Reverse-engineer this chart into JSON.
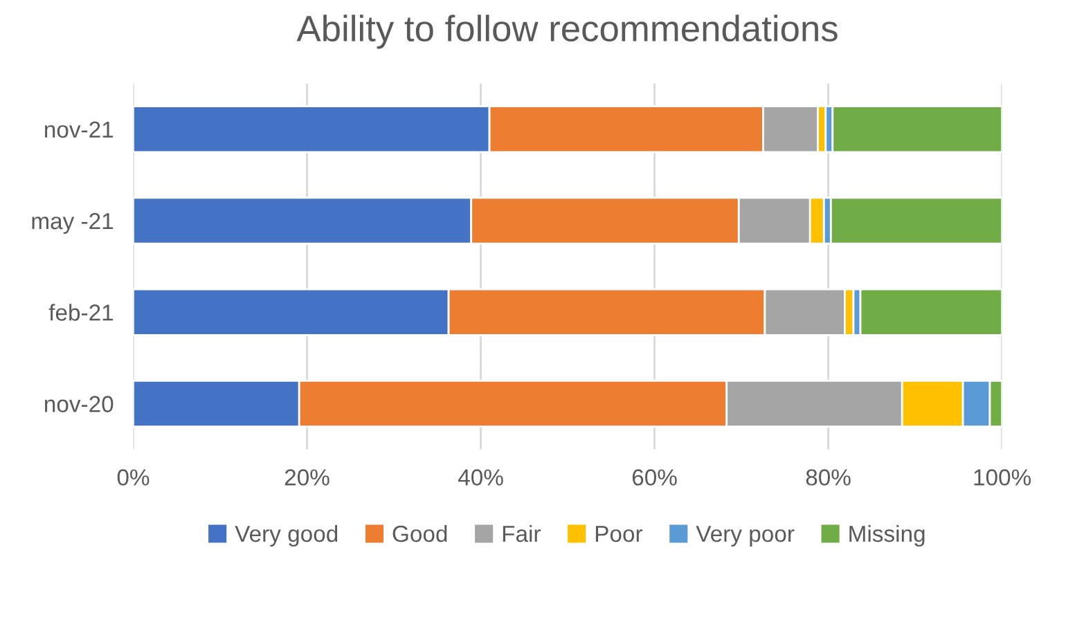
{
  "chart_data": {
    "type": "bar",
    "orientation": "horizontal",
    "stacked": true,
    "title": "Ability to follow recommendations",
    "categories": [
      "nov-21",
      "may -21",
      "feb-21",
      "nov-20"
    ],
    "series": [
      {
        "name": "Very good",
        "color": "#4472c4",
        "values": [
          41.0,
          38.9,
          36.3,
          19.1
        ]
      },
      {
        "name": "Good",
        "color": "#ed7d31",
        "values": [
          31.5,
          30.8,
          36.4,
          49.2
        ]
      },
      {
        "name": "Fair",
        "color": "#a5a5a5",
        "values": [
          6.3,
          8.2,
          9.2,
          20.2
        ]
      },
      {
        "name": "Poor",
        "color": "#ffc000",
        "values": [
          0.9,
          1.6,
          1.0,
          7.0
        ]
      },
      {
        "name": "Very poor",
        "color": "#5b9bd5",
        "values": [
          0.8,
          0.8,
          0.8,
          3.1
        ]
      },
      {
        "name": "Missing",
        "color": "#70ad47",
        "values": [
          19.5,
          19.7,
          16.3,
          1.4
        ]
      }
    ],
    "xlim": [
      0,
      100
    ],
    "xticks": [
      {
        "value": 0,
        "label": "0%"
      },
      {
        "value": 20,
        "label": "20%"
      },
      {
        "value": 40,
        "label": "40%"
      },
      {
        "value": 60,
        "label": "60%"
      },
      {
        "value": 80,
        "label": "80%"
      },
      {
        "value": 100,
        "label": "100%"
      }
    ],
    "grid": "x",
    "legend": "bottom"
  }
}
